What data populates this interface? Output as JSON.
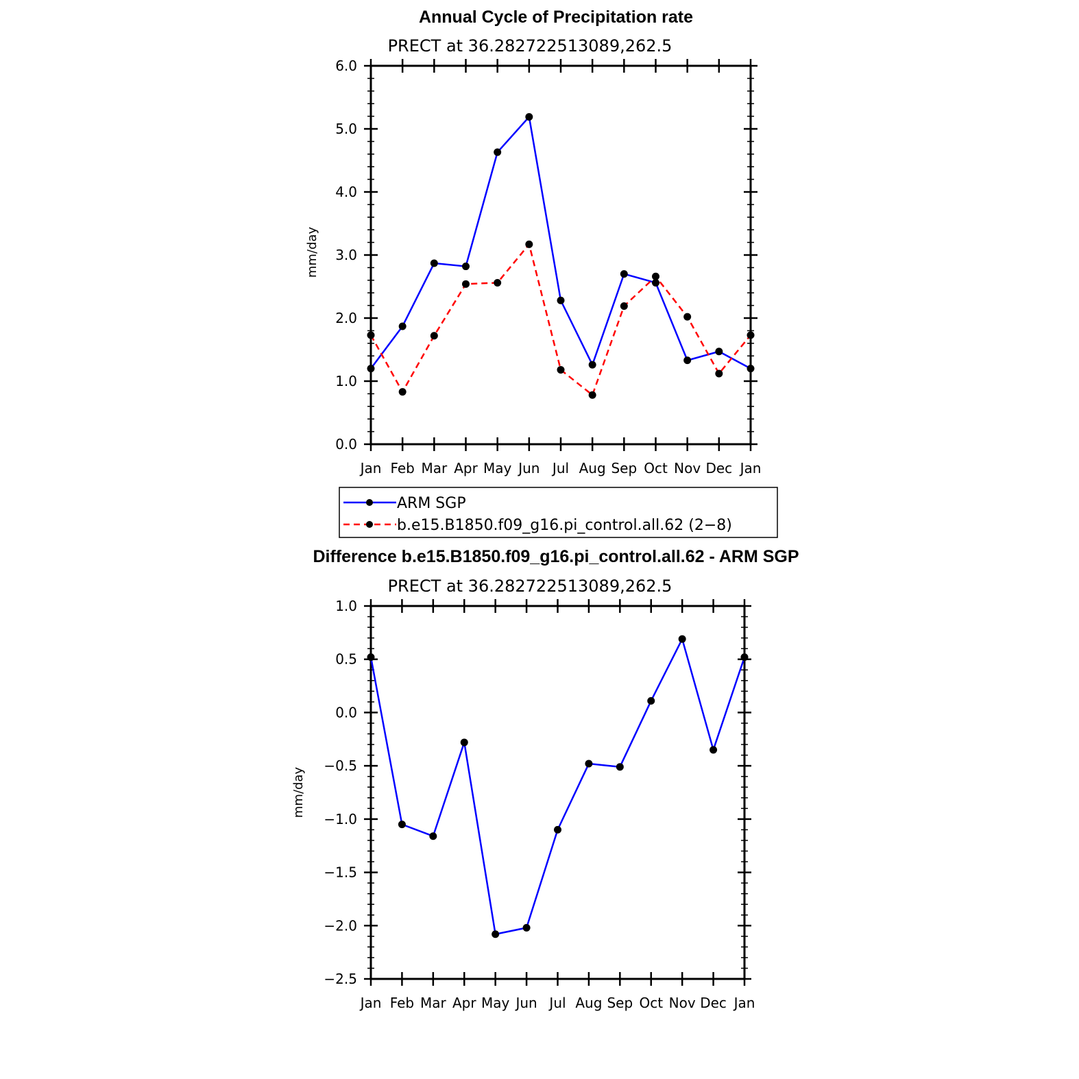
{
  "colors": {
    "obs": "#0000ff",
    "model": "#ff0000",
    "marker": "#000000"
  },
  "chart_data": [
    {
      "type": "line",
      "title": "Annual Cycle of Precipitation rate",
      "subtitle": "PRECT at 36.282722513089,262.5",
      "ylabel": "mm/day",
      "ylim": [
        0,
        6
      ],
      "yticks": [
        "0.0",
        "1.0",
        "2.0",
        "3.0",
        "4.0",
        "5.0",
        "6.0"
      ],
      "categories": [
        "Jan",
        "Feb",
        "Mar",
        "Apr",
        "May",
        "Jun",
        "Jul",
        "Aug",
        "Sep",
        "Oct",
        "Nov",
        "Dec",
        "Jan"
      ],
      "series": [
        {
          "name": "ARM SGP",
          "style": "solid",
          "color": "#0000ff",
          "values": [
            1.2,
            1.87,
            2.87,
            2.82,
            4.63,
            5.19,
            2.28,
            1.26,
            2.7,
            2.56,
            1.33,
            1.47,
            1.2
          ]
        },
        {
          "name": "b.e15.B1850.f09_g16.pi_control.all.62 (2−8)",
          "style": "dashed",
          "color": "#ff0000",
          "values": [
            1.73,
            0.83,
            1.72,
            2.54,
            2.56,
            3.17,
            1.18,
            0.78,
            2.19,
            2.66,
            2.02,
            1.12,
            1.73
          ]
        }
      ],
      "legend": {
        "position": "below"
      }
    },
    {
      "type": "line",
      "title": "Difference b.e15.B1850.f09_g16.pi_control.all.62 - ARM SGP",
      "subtitle": "PRECT at 36.282722513089,262.5",
      "ylabel": "mm/day",
      "ylim": [
        -2.5,
        1.0
      ],
      "yticks": [
        "−2.5",
        "−2.0",
        "−1.5",
        "−1.0",
        "−0.5",
        "0.0",
        "0.5",
        "1.0"
      ],
      "categories": [
        "Jan",
        "Feb",
        "Mar",
        "Apr",
        "May",
        "Jun",
        "Jul",
        "Aug",
        "Sep",
        "Oct",
        "Nov",
        "Dec",
        "Jan"
      ],
      "series": [
        {
          "name": "Difference",
          "style": "solid",
          "color": "#0000ff",
          "values": [
            0.52,
            -1.05,
            -1.16,
            -0.28,
            -2.08,
            -2.02,
            -1.1,
            -0.48,
            -0.51,
            0.11,
            0.69,
            -0.35,
            0.52
          ]
        }
      ]
    }
  ]
}
